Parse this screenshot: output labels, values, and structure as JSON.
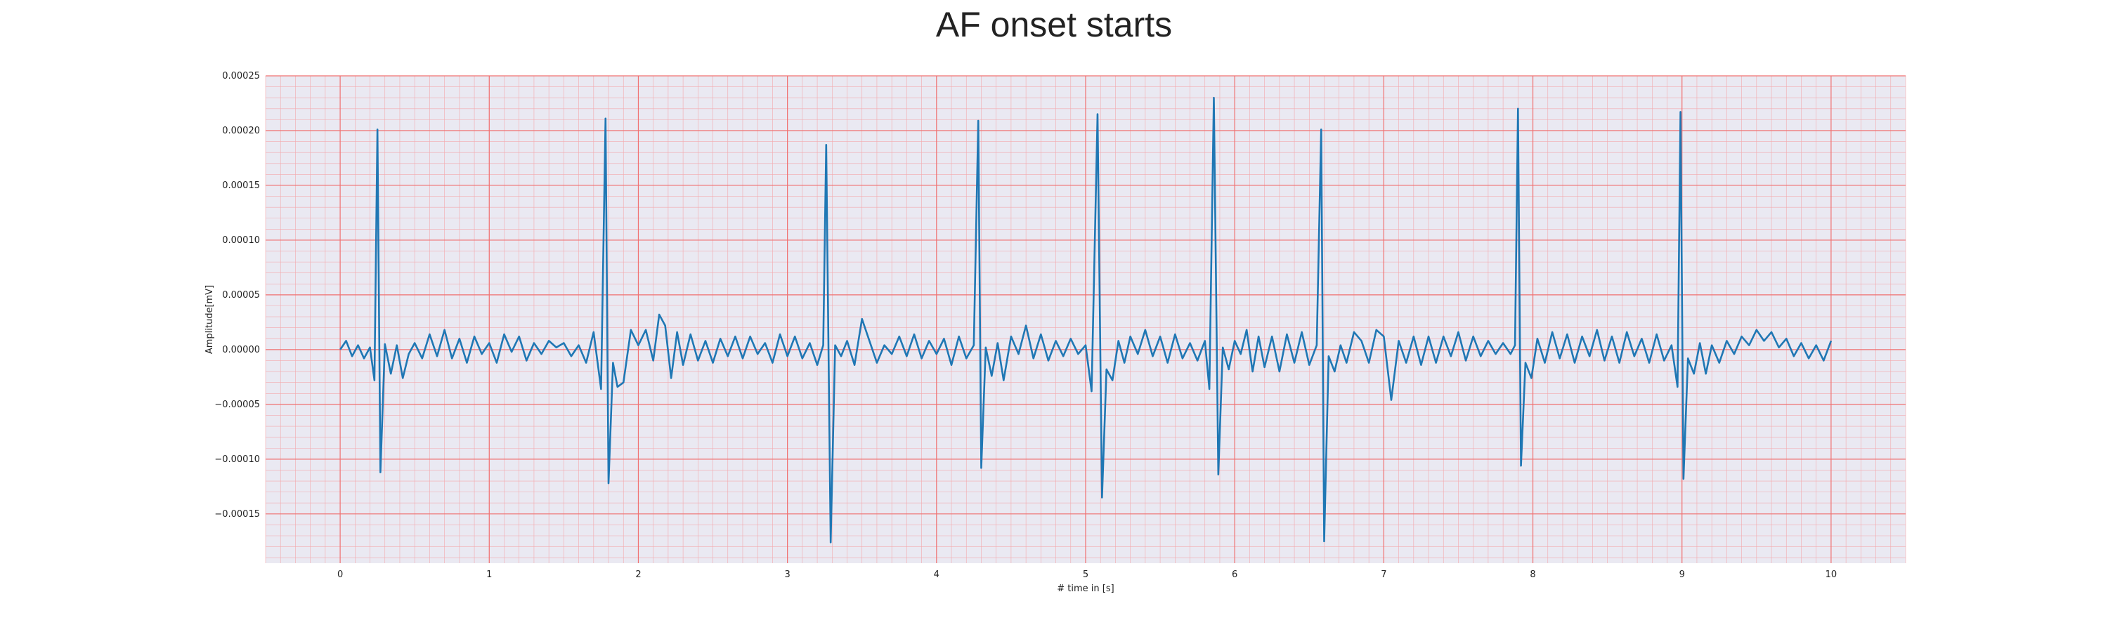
{
  "chart_data": {
    "type": "line",
    "title": "AF onset starts",
    "xlabel": "# time in [s]",
    "ylabel": "Amplitude[mV]",
    "xlim": [
      -0.5,
      10.5
    ],
    "ylim": [
      -0.000195,
      0.00025
    ],
    "x_ticks": [
      0,
      1,
      2,
      3,
      4,
      5,
      6,
      7,
      8,
      9,
      10
    ],
    "x_tick_labels": [
      "0",
      "1",
      "2",
      "3",
      "4",
      "5",
      "6",
      "7",
      "8",
      "9",
      "10"
    ],
    "y_ticks": [
      -0.00015,
      -0.0001,
      -5e-05,
      0,
      5e-05,
      0.0001,
      0.00015,
      0.0002,
      0.00025
    ],
    "y_tick_labels": [
      "−0.00015",
      "−0.00010",
      "−0.00005",
      "0.00000",
      "0.00005",
      "0.00010",
      "0.00015",
      "0.00020",
      "0.00025"
    ],
    "grid": "major and minor",
    "colors": {
      "line": "#1f77b4",
      "background": "#eae9f2",
      "major_grid": "#f07070",
      "minor_grid": "#f3a9ad",
      "text": "#222222"
    },
    "series": [
      {
        "values": [
          [
            0.0,
            0.0
          ],
          [
            0.04,
            8e-06
          ],
          [
            0.08,
            -6e-06
          ],
          [
            0.12,
            4e-06
          ],
          [
            0.16,
            -8e-06
          ],
          [
            0.2,
            2e-06
          ],
          [
            0.23,
            -2.8e-05
          ],
          [
            0.25,
            0.000201
          ],
          [
            0.27,
            -0.000112
          ],
          [
            0.3,
            5e-06
          ],
          [
            0.34,
            -2.2e-05
          ],
          [
            0.38,
            4e-06
          ],
          [
            0.42,
            -2.6e-05
          ],
          [
            0.46,
            -4e-06
          ],
          [
            0.5,
            6e-06
          ],
          [
            0.55,
            -8e-06
          ],
          [
            0.6,
            1.4e-05
          ],
          [
            0.65,
            -6e-06
          ],
          [
            0.7,
            1.8e-05
          ],
          [
            0.75,
            -8e-06
          ],
          [
            0.8,
            1e-05
          ],
          [
            0.85,
            -1.2e-05
          ],
          [
            0.9,
            1.2e-05
          ],
          [
            0.95,
            -4e-06
          ],
          [
            1.0,
            6e-06
          ],
          [
            1.05,
            -1.2e-05
          ],
          [
            1.1,
            1.4e-05
          ],
          [
            1.15,
            -2e-06
          ],
          [
            1.2,
            1.2e-05
          ],
          [
            1.25,
            -1e-05
          ],
          [
            1.3,
            6e-06
          ],
          [
            1.35,
            -4e-06
          ],
          [
            1.4,
            8e-06
          ],
          [
            1.45,
            2e-06
          ],
          [
            1.5,
            6e-06
          ],
          [
            1.55,
            -6e-06
          ],
          [
            1.6,
            4e-06
          ],
          [
            1.65,
            -1.2e-05
          ],
          [
            1.7,
            1.6e-05
          ],
          [
            1.75,
            -3.6e-05
          ],
          [
            1.78,
            0.000211
          ],
          [
            1.8,
            -0.000122
          ],
          [
            1.83,
            -1.2e-05
          ],
          [
            1.86,
            -3.4e-05
          ],
          [
            1.9,
            -3e-05
          ],
          [
            1.95,
            1.8e-05
          ],
          [
            2.0,
            4e-06
          ],
          [
            2.05,
            1.8e-05
          ],
          [
            2.1,
            -1e-05
          ],
          [
            2.14,
            3.2e-05
          ],
          [
            2.18,
            2.2e-05
          ],
          [
            2.22,
            -2.6e-05
          ],
          [
            2.26,
            1.6e-05
          ],
          [
            2.3,
            -1.4e-05
          ],
          [
            2.35,
            1.4e-05
          ],
          [
            2.4,
            -1e-05
          ],
          [
            2.45,
            8e-06
          ],
          [
            2.5,
            -1.2e-05
          ],
          [
            2.55,
            1e-05
          ],
          [
            2.6,
            -6e-06
          ],
          [
            2.65,
            1.2e-05
          ],
          [
            2.7,
            -8e-06
          ],
          [
            2.75,
            1.2e-05
          ],
          [
            2.8,
            -4e-06
          ],
          [
            2.85,
            6e-06
          ],
          [
            2.9,
            -1.2e-05
          ],
          [
            2.95,
            1.4e-05
          ],
          [
            3.0,
            -6e-06
          ],
          [
            3.05,
            1.2e-05
          ],
          [
            3.1,
            -8e-06
          ],
          [
            3.15,
            6e-06
          ],
          [
            3.2,
            -1.4e-05
          ],
          [
            3.24,
            4e-06
          ],
          [
            3.26,
            0.000187
          ],
          [
            3.29,
            -0.000176
          ],
          [
            3.32,
            4e-06
          ],
          [
            3.36,
            -6e-06
          ],
          [
            3.4,
            8e-06
          ],
          [
            3.45,
            -1.4e-05
          ],
          [
            3.5,
            2.8e-05
          ],
          [
            3.55,
            8e-06
          ],
          [
            3.6,
            -1.2e-05
          ],
          [
            3.65,
            4e-06
          ],
          [
            3.7,
            -4e-06
          ],
          [
            3.75,
            1.2e-05
          ],
          [
            3.8,
            -6e-06
          ],
          [
            3.85,
            1.4e-05
          ],
          [
            3.9,
            -8e-06
          ],
          [
            3.95,
            8e-06
          ],
          [
            4.0,
            -4e-06
          ],
          [
            4.05,
            1e-05
          ],
          [
            4.1,
            -1.4e-05
          ],
          [
            4.15,
            1.2e-05
          ],
          [
            4.2,
            -8e-06
          ],
          [
            4.25,
            4e-06
          ],
          [
            4.28,
            0.000209
          ],
          [
            4.3,
            -0.000108
          ],
          [
            4.33,
            2e-06
          ],
          [
            4.37,
            -2.4e-05
          ],
          [
            4.41,
            6e-06
          ],
          [
            4.45,
            -2.8e-05
          ],
          [
            4.5,
            1.2e-05
          ],
          [
            4.55,
            -4e-06
          ],
          [
            4.6,
            2.2e-05
          ],
          [
            4.65,
            -8e-06
          ],
          [
            4.7,
            1.4e-05
          ],
          [
            4.75,
            -1e-05
          ],
          [
            4.8,
            8e-06
          ],
          [
            4.85,
            -6e-06
          ],
          [
            4.9,
            1e-05
          ],
          [
            4.95,
            -4e-06
          ],
          [
            5.0,
            4e-06
          ],
          [
            5.04,
            -3.8e-05
          ],
          [
            5.08,
            0.000215
          ],
          [
            5.11,
            -0.000135
          ],
          [
            5.14,
            -1.8e-05
          ],
          [
            5.18,
            -2.8e-05
          ],
          [
            5.22,
            8e-06
          ],
          [
            5.26,
            -1.2e-05
          ],
          [
            5.3,
            1.2e-05
          ],
          [
            5.35,
            -4e-06
          ],
          [
            5.4,
            1.8e-05
          ],
          [
            5.45,
            -6e-06
          ],
          [
            5.5,
            1.2e-05
          ],
          [
            5.55,
            -1.2e-05
          ],
          [
            5.6,
            1.4e-05
          ],
          [
            5.65,
            -8e-06
          ],
          [
            5.7,
            6e-06
          ],
          [
            5.75,
            -1e-05
          ],
          [
            5.8,
            8e-06
          ],
          [
            5.83,
            -3.6e-05
          ],
          [
            5.86,
            0.00023
          ],
          [
            5.89,
            -0.000114
          ],
          [
            5.92,
            2e-06
          ],
          [
            5.96,
            -1.8e-05
          ],
          [
            6.0,
            8e-06
          ],
          [
            6.04,
            -4e-06
          ],
          [
            6.08,
            1.8e-05
          ],
          [
            6.12,
            -2e-05
          ],
          [
            6.16,
            1.2e-05
          ],
          [
            6.2,
            -1.6e-05
          ],
          [
            6.25,
            1.2e-05
          ],
          [
            6.3,
            -2e-05
          ],
          [
            6.35,
            1.4e-05
          ],
          [
            6.4,
            -1.2e-05
          ],
          [
            6.45,
            1.6e-05
          ],
          [
            6.5,
            -1.4e-05
          ],
          [
            6.55,
            4e-06
          ],
          [
            6.58,
            0.000201
          ],
          [
            6.6,
            -0.000175
          ],
          [
            6.63,
            -6e-06
          ],
          [
            6.67,
            -2e-05
          ],
          [
            6.71,
            4e-06
          ],
          [
            6.75,
            -1.2e-05
          ],
          [
            6.8,
            1.6e-05
          ],
          [
            6.85,
            8e-06
          ],
          [
            6.9,
            -1.2e-05
          ],
          [
            6.95,
            1.8e-05
          ],
          [
            7.0,
            1.2e-05
          ],
          [
            7.05,
            -4.6e-05
          ],
          [
            7.1,
            8e-06
          ],
          [
            7.15,
            -1.2e-05
          ],
          [
            7.2,
            1.2e-05
          ],
          [
            7.25,
            -1.4e-05
          ],
          [
            7.3,
            1.2e-05
          ],
          [
            7.35,
            -1.2e-05
          ],
          [
            7.4,
            1.2e-05
          ],
          [
            7.45,
            -6e-06
          ],
          [
            7.5,
            1.6e-05
          ],
          [
            7.55,
            -1e-05
          ],
          [
            7.6,
            1.2e-05
          ],
          [
            7.65,
            -6e-06
          ],
          [
            7.7,
            8e-06
          ],
          [
            7.75,
            -4e-06
          ],
          [
            7.8,
            6e-06
          ],
          [
            7.85,
            -4e-06
          ],
          [
            7.88,
            4e-06
          ],
          [
            7.9,
            0.00022
          ],
          [
            7.92,
            -0.000106
          ],
          [
            7.95,
            -1.2e-05
          ],
          [
            7.99,
            -2.6e-05
          ],
          [
            8.03,
            1e-05
          ],
          [
            8.08,
            -1.2e-05
          ],
          [
            8.13,
            1.6e-05
          ],
          [
            8.18,
            -8e-06
          ],
          [
            8.23,
            1.4e-05
          ],
          [
            8.28,
            -1.2e-05
          ],
          [
            8.33,
            1.2e-05
          ],
          [
            8.38,
            -6e-06
          ],
          [
            8.43,
            1.8e-05
          ],
          [
            8.48,
            -1e-05
          ],
          [
            8.53,
            1.2e-05
          ],
          [
            8.58,
            -1.2e-05
          ],
          [
            8.63,
            1.6e-05
          ],
          [
            8.68,
            -6e-06
          ],
          [
            8.73,
            1e-05
          ],
          [
            8.78,
            -1.2e-05
          ],
          [
            8.83,
            1.4e-05
          ],
          [
            8.88,
            -1e-05
          ],
          [
            8.93,
            4e-06
          ],
          [
            8.97,
            -3.4e-05
          ],
          [
            8.99,
            0.000217
          ],
          [
            9.01,
            -0.000118
          ],
          [
            9.04,
            -8e-06
          ],
          [
            9.08,
            -2.2e-05
          ],
          [
            9.12,
            6e-06
          ],
          [
            9.16,
            -2.2e-05
          ],
          [
            9.2,
            4e-06
          ],
          [
            9.25,
            -1.2e-05
          ],
          [
            9.3,
            8e-06
          ],
          [
            9.35,
            -4e-06
          ],
          [
            9.4,
            1.2e-05
          ],
          [
            9.45,
            4e-06
          ],
          [
            9.5,
            1.8e-05
          ],
          [
            9.55,
            8e-06
          ],
          [
            9.6,
            1.6e-05
          ],
          [
            9.65,
            2e-06
          ],
          [
            9.7,
            1e-05
          ],
          [
            9.75,
            -6e-06
          ],
          [
            9.8,
            6e-06
          ],
          [
            9.85,
            -8e-06
          ],
          [
            9.9,
            4e-06
          ],
          [
            9.95,
            -1e-05
          ],
          [
            10.0,
            8e-06
          ]
        ]
      }
    ]
  }
}
